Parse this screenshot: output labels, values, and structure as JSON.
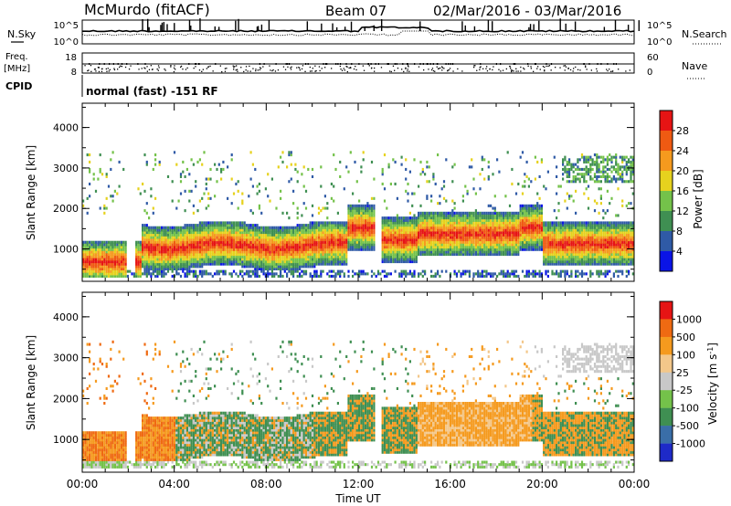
{
  "header": {
    "station": "McMurdo (fitACF)",
    "beam": "Beam 07",
    "dates": "02/Mar/2016 - 03/Mar/2016"
  },
  "top_panel": {
    "left_label": "N.Sky",
    "right_label": "N.Search",
    "ticks_left": [
      "10^5",
      "10^0"
    ],
    "ticks_right": [
      "10^5",
      "10^0"
    ]
  },
  "freq_panel": {
    "left_label_1": "Freq.",
    "left_label_2": "[MHz]",
    "right_label": "Nave",
    "ticks_left": [
      "18",
      "8"
    ],
    "ticks_right": [
      "60",
      "0"
    ]
  },
  "cpid": {
    "label": "CPID",
    "text": "normal (fast) -151 RF"
  },
  "x_axis": {
    "title": "Time UT",
    "ticks": [
      "00:00",
      "04:00",
      "08:00",
      "12:00",
      "16:00",
      "20:00",
      "00:00"
    ]
  },
  "chart_data": [
    {
      "type": "heatmap",
      "quantity": "Power",
      "ylabel": "Slant Range [km]",
      "y_ticks": [
        1000,
        2000,
        3000,
        4000
      ],
      "ylim": [
        200,
        4600
      ],
      "xlim_hours": [
        0,
        24
      ],
      "colorbar_label": "Power [dB]",
      "colorbar_ticks": [
        "4",
        "8",
        "12",
        "16",
        "20",
        "24",
        "28"
      ],
      "colorbar_range": [
        0,
        32
      ],
      "colors": [
        "#0a14e6",
        "#2f5aa6",
        "#3f8f52",
        "#74c24a",
        "#e6d21e",
        "#f59a1e",
        "#ef5a12",
        "#e61414"
      ]
    },
    {
      "type": "heatmap",
      "quantity": "Velocity",
      "ylabel": "Slant Range [km]",
      "y_ticks": [
        1000,
        2000,
        3000,
        4000
      ],
      "ylim": [
        200,
        4600
      ],
      "xlim_hours": [
        0,
        24
      ],
      "colorbar_label": "Velocity [m s^-1]",
      "colorbar_ticks": [
        "1000",
        "500",
        "100",
        "25",
        "-25",
        "-100",
        "-500",
        "-1000"
      ],
      "colors": [
        "#1e2ac8",
        "#3a6ea8",
        "#3f8f52",
        "#74c24a",
        "#c8c8c8",
        "#f3c78a",
        "#f59a1e",
        "#ef6a12",
        "#e61414"
      ]
    }
  ]
}
